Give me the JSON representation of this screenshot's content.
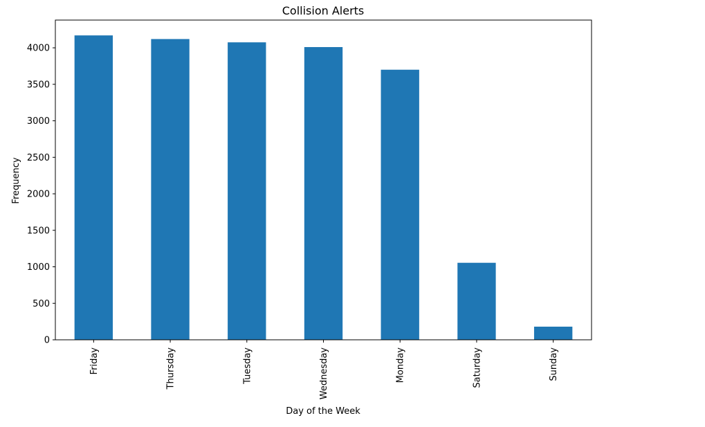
{
  "chart_data": {
    "type": "bar",
    "title": "Collision Alerts",
    "xlabel": "Day of the Week",
    "ylabel": "Frequency",
    "categories": [
      "Friday",
      "Thursday",
      "Tuesday",
      "Wednesday",
      "Monday",
      "Saturday",
      "Sunday"
    ],
    "values": [
      4170,
      4120,
      4075,
      4010,
      3700,
      1055,
      180
    ],
    "ylim": [
      0,
      4380
    ],
    "yticks": [
      0,
      500,
      1000,
      1500,
      2000,
      2500,
      3000,
      3500,
      4000
    ],
    "grid": false,
    "legend": "none",
    "bar_color": "#1f77b4"
  }
}
